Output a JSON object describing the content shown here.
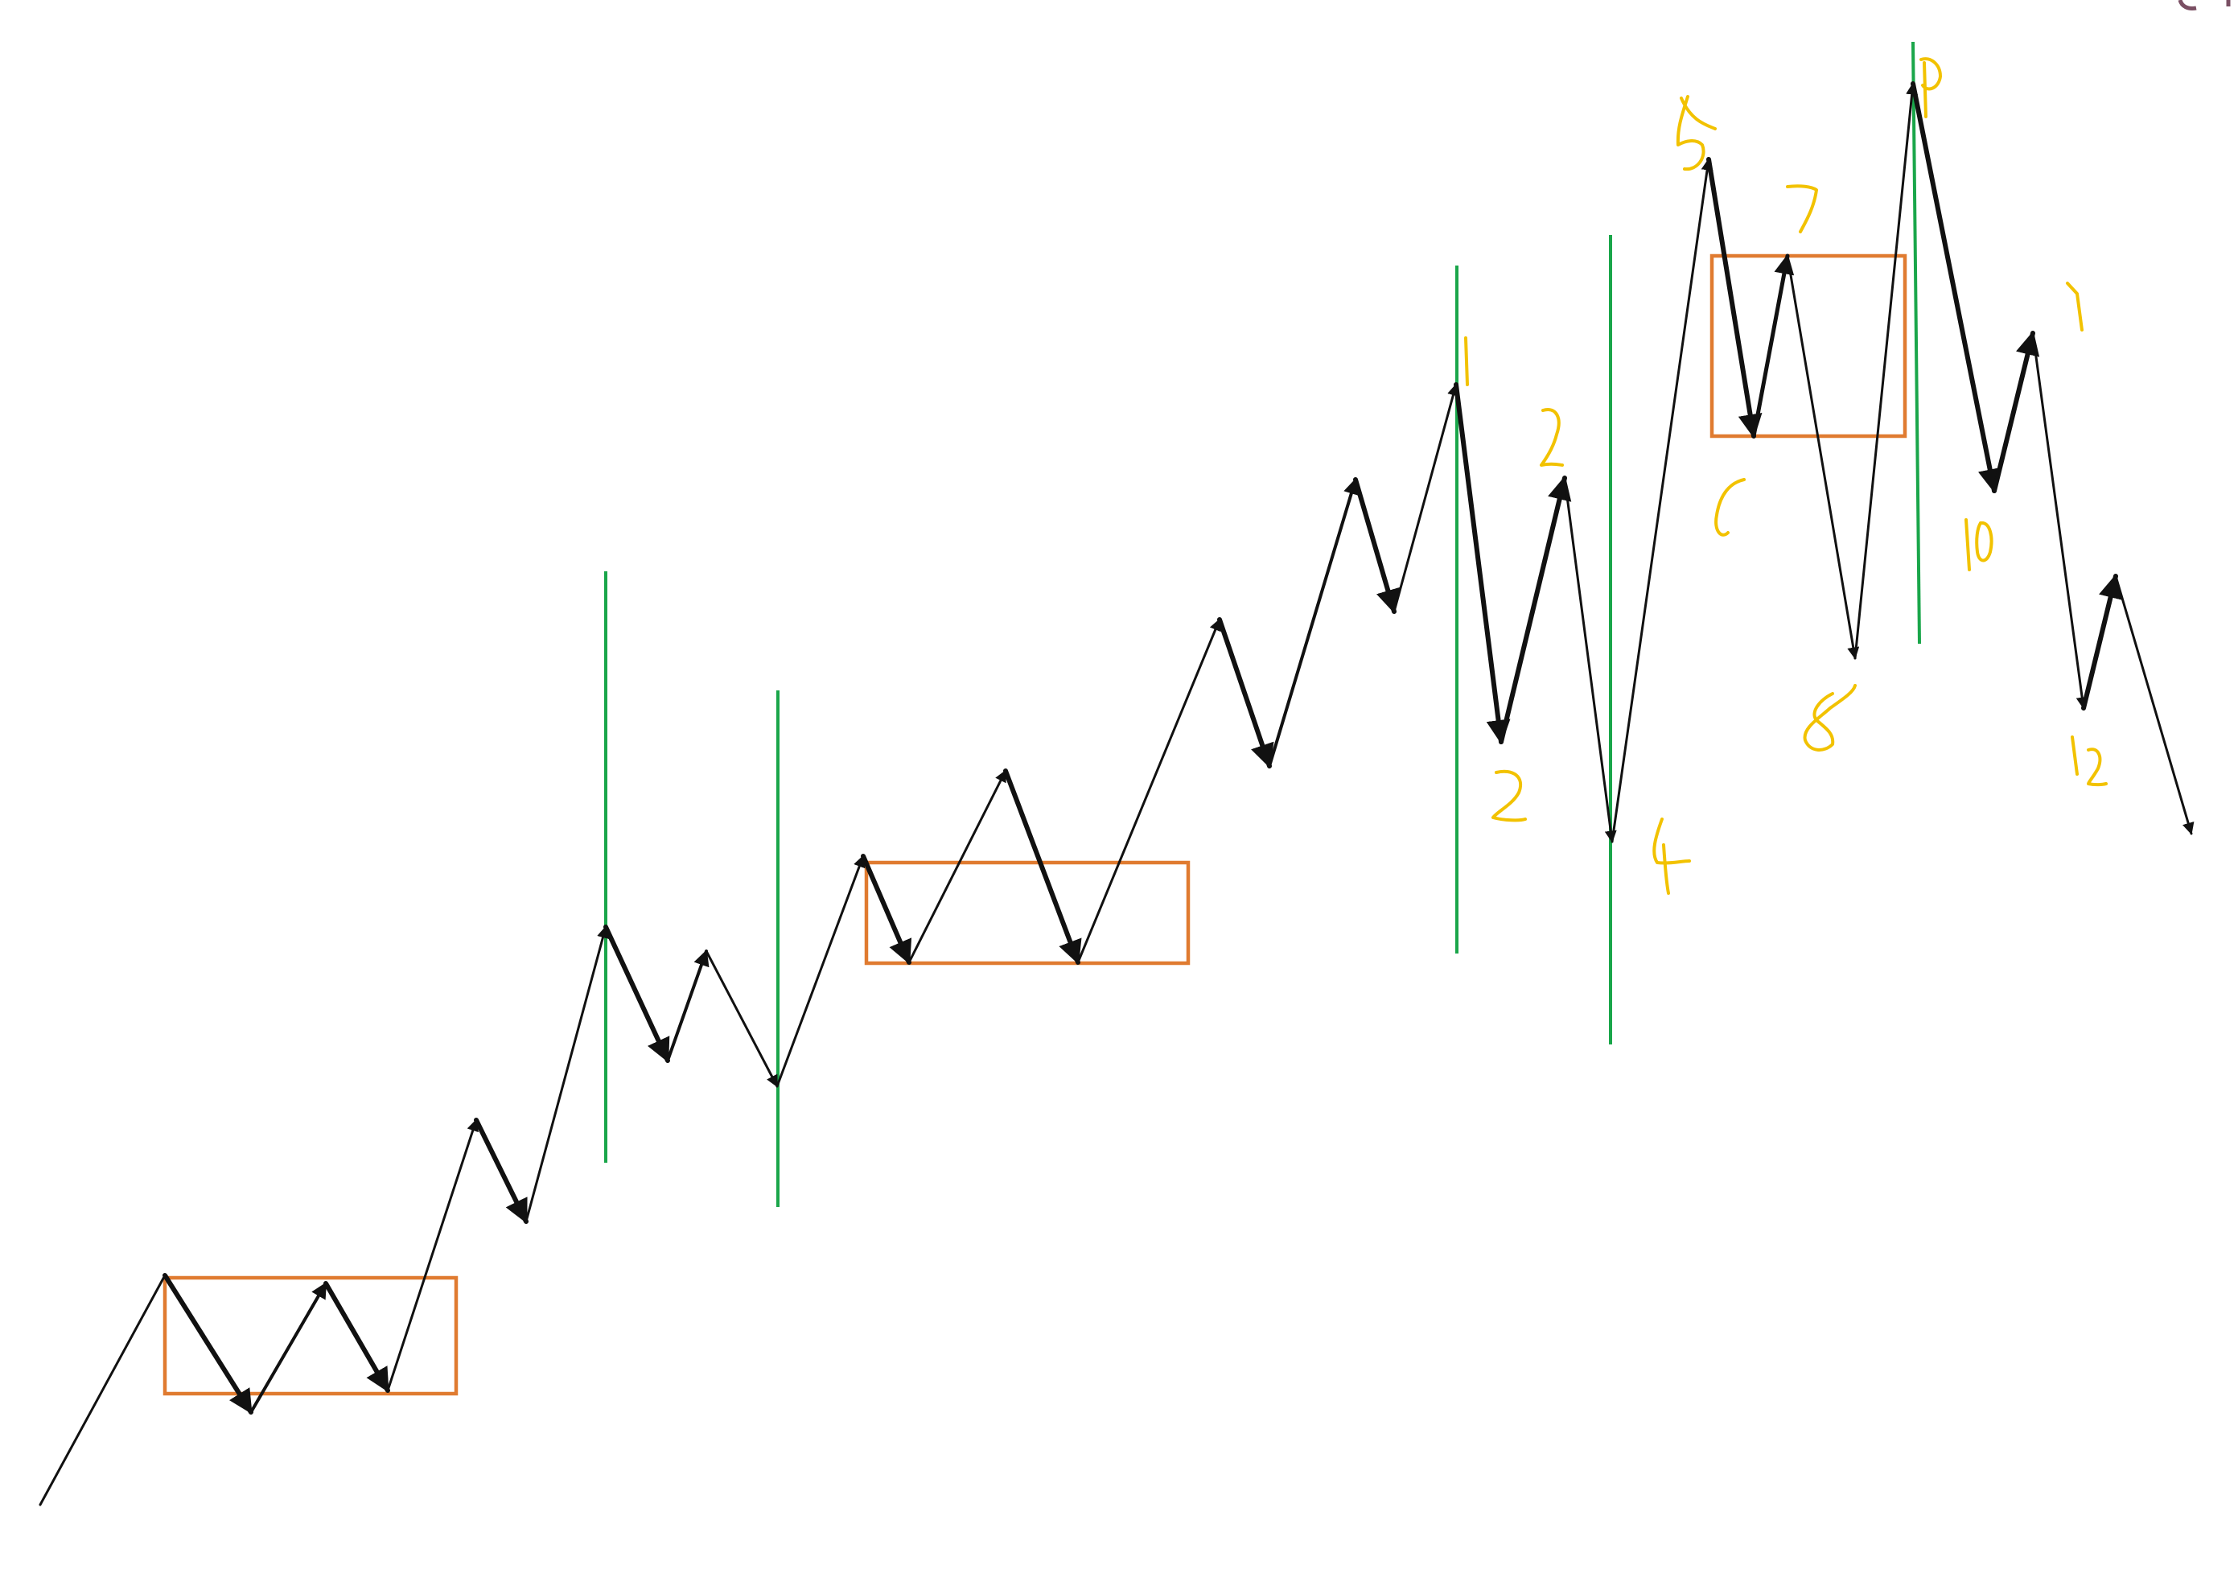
{
  "colors": {
    "background": "#ffffff",
    "wave": "#111111",
    "vertical_line": "#1aa64a",
    "range_box": "#e07b30",
    "annotation": "#f2c200",
    "corner_mark": "#7a4f63"
  },
  "annotations": [
    "1",
    "2",
    "3",
    "4",
    "5",
    "6",
    "7",
    "8",
    "9",
    "1",
    "10",
    "12"
  ]
}
